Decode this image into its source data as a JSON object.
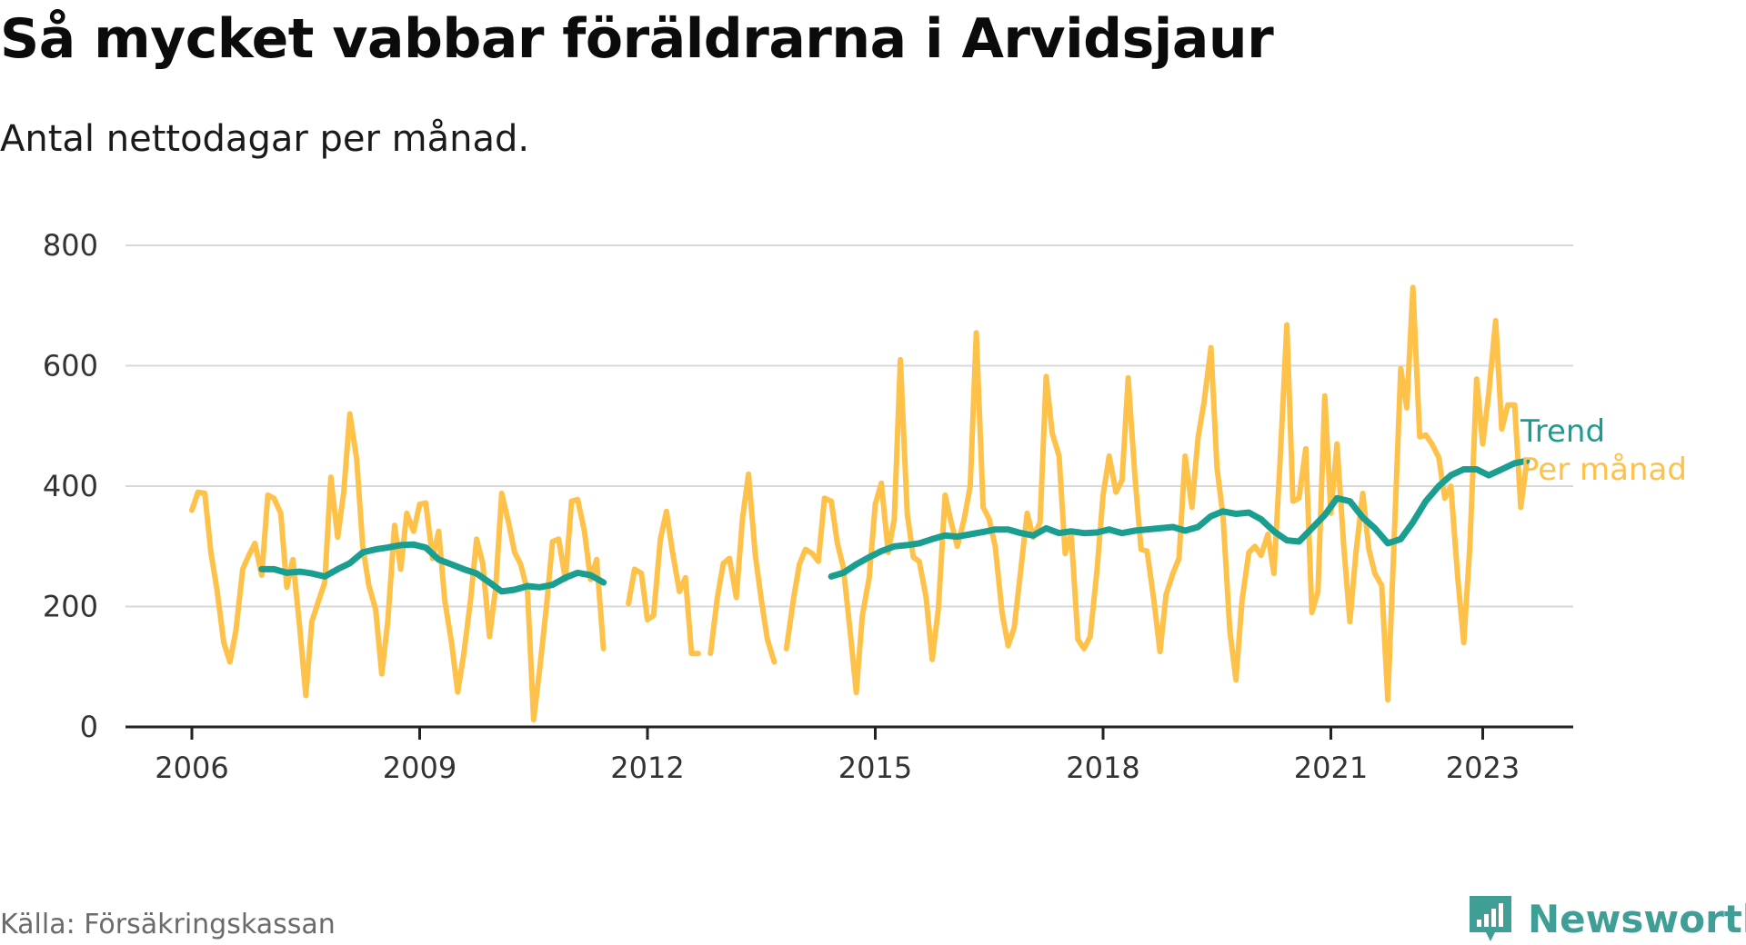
{
  "title": "Så mycket vabbar föräldrarna i Arvidsjaur",
  "subtitle": "Antal nettodagar per månad.",
  "source": "Källa: Försäkringskassan",
  "brand": "Newsworthy",
  "colors": {
    "monthly": "#FEC24A",
    "trend": "#1A9E8F",
    "grid": "#d8d8d8",
    "axis": "#222222",
    "brand": "#3F9E96"
  },
  "chart_data": {
    "type": "line",
    "title": "Så mycket vabbar föräldrarna i Arvidsjaur",
    "subtitle": "Antal nettodagar per månad.",
    "ylim": [
      0,
      800
    ],
    "yticks": [
      0,
      200,
      400,
      600,
      800
    ],
    "xlim": [
      2006,
      2024.2
    ],
    "xticks": [
      2006,
      2009,
      2012,
      2015,
      2018,
      2021,
      2023
    ],
    "grid": true,
    "legend": "end-of-line labels, right",
    "series": [
      {
        "name": "Per månad",
        "color": "#FEC24A",
        "points": [
          [
            2006.0,
            360
          ],
          [
            2006.08,
            390
          ],
          [
            2006.17,
            388
          ],
          [
            2006.25,
            290
          ],
          [
            2006.33,
            228
          ],
          [
            2006.42,
            140
          ],
          [
            2006.5,
            108
          ],
          [
            2006.58,
            160
          ],
          [
            2006.67,
            262
          ],
          [
            2006.75,
            285
          ],
          [
            2006.83,
            305
          ],
          [
            2006.92,
            252
          ],
          [
            2007.0,
            385
          ],
          [
            2007.08,
            380
          ],
          [
            2007.17,
            355
          ],
          [
            2007.25,
            232
          ],
          [
            2007.33,
            278
          ],
          [
            2007.42,
            165
          ],
          [
            2007.5,
            52
          ],
          [
            2007.58,
            175
          ],
          [
            2007.67,
            210
          ],
          [
            2007.75,
            240
          ],
          [
            2007.83,
            415
          ],
          [
            2007.92,
            315
          ],
          [
            2008.0,
            390
          ],
          [
            2008.08,
            520
          ],
          [
            2008.17,
            445
          ],
          [
            2008.25,
            300
          ],
          [
            2008.33,
            235
          ],
          [
            2008.42,
            195
          ],
          [
            2008.5,
            88
          ],
          [
            2008.58,
            175
          ],
          [
            2008.67,
            335
          ],
          [
            2008.75,
            262
          ],
          [
            2008.83,
            355
          ],
          [
            2008.92,
            325
          ],
          [
            2009.0,
            370
          ],
          [
            2009.08,
            372
          ],
          [
            2009.17,
            280
          ],
          [
            2009.25,
            325
          ],
          [
            2009.33,
            210
          ],
          [
            2009.42,
            140
          ],
          [
            2009.5,
            58
          ],
          [
            2009.58,
            120
          ],
          [
            2009.67,
            210
          ],
          [
            2009.75,
            312
          ],
          [
            2009.83,
            272
          ],
          [
            2009.92,
            150
          ],
          [
            2010.0,
            230
          ],
          [
            2010.08,
            388
          ],
          [
            2010.17,
            340
          ],
          [
            2010.25,
            290
          ],
          [
            2010.33,
            270
          ],
          [
            2010.42,
            225
          ],
          [
            2010.5,
            12
          ],
          [
            2010.58,
            95
          ],
          [
            2010.67,
            200
          ],
          [
            2010.75,
            308
          ],
          [
            2010.83,
            312
          ],
          [
            2010.92,
            245
          ],
          [
            2011.0,
            375
          ],
          [
            2011.08,
            378
          ],
          [
            2011.17,
            325
          ],
          [
            2011.25,
            245
          ],
          [
            2011.33,
            278
          ],
          [
            2011.42,
            130
          ],
          null,
          [
            2011.75,
            205
          ],
          [
            2011.83,
            262
          ],
          [
            2011.92,
            255
          ],
          [
            2012.0,
            178
          ],
          [
            2012.08,
            185
          ],
          [
            2012.17,
            312
          ],
          [
            2012.25,
            358
          ],
          [
            2012.33,
            290
          ],
          [
            2012.42,
            225
          ],
          [
            2012.5,
            248
          ],
          [
            2012.58,
            122
          ],
          [
            2012.67,
            122
          ],
          null,
          [
            2012.83,
            122
          ],
          [
            2012.92,
            215
          ],
          [
            2013.0,
            272
          ],
          [
            2013.08,
            280
          ],
          [
            2013.17,
            215
          ],
          [
            2013.25,
            345
          ],
          [
            2013.33,
            420
          ],
          [
            2013.42,
            285
          ],
          [
            2013.5,
            210
          ],
          [
            2013.58,
            145
          ],
          [
            2013.67,
            108
          ],
          null,
          [
            2013.83,
            130
          ],
          [
            2013.92,
            210
          ],
          [
            2014.0,
            270
          ],
          [
            2014.08,
            295
          ],
          [
            2014.17,
            288
          ],
          [
            2014.25,
            275
          ],
          [
            2014.33,
            380
          ],
          [
            2014.42,
            375
          ],
          [
            2014.5,
            305
          ],
          [
            2014.58,
            265
          ],
          [
            2014.67,
            158
          ],
          [
            2014.75,
            57
          ],
          [
            2014.83,
            185
          ],
          [
            2014.92,
            248
          ],
          [
            2015.0,
            370
          ],
          [
            2015.08,
            405
          ],
          [
            2015.17,
            290
          ],
          [
            2015.25,
            345
          ],
          [
            2015.33,
            610
          ],
          [
            2015.42,
            355
          ],
          [
            2015.5,
            282
          ],
          [
            2015.58,
            275
          ],
          [
            2015.67,
            215
          ],
          [
            2015.75,
            112
          ],
          [
            2015.83,
            195
          ],
          [
            2015.92,
            385
          ],
          [
            2016.0,
            340
          ],
          [
            2016.08,
            300
          ],
          [
            2016.17,
            345
          ],
          [
            2016.25,
            400
          ],
          [
            2016.33,
            655
          ],
          [
            2016.42,
            365
          ],
          [
            2016.5,
            345
          ],
          [
            2016.58,
            300
          ],
          [
            2016.67,
            190
          ],
          [
            2016.75,
            135
          ],
          [
            2016.83,
            165
          ],
          [
            2016.92,
            265
          ],
          [
            2017.0,
            355
          ],
          [
            2017.08,
            315
          ],
          [
            2017.17,
            340
          ],
          [
            2017.25,
            582
          ],
          [
            2017.33,
            488
          ],
          [
            2017.42,
            450
          ],
          [
            2017.5,
            288
          ],
          [
            2017.58,
            322
          ],
          [
            2017.67,
            145
          ],
          [
            2017.75,
            130
          ],
          [
            2017.83,
            150
          ],
          [
            2017.92,
            260
          ],
          [
            2018.0,
            385
          ],
          [
            2018.08,
            450
          ],
          [
            2018.17,
            390
          ],
          [
            2018.25,
            410
          ],
          [
            2018.33,
            580
          ],
          [
            2018.42,
            415
          ],
          [
            2018.5,
            295
          ],
          [
            2018.58,
            292
          ],
          [
            2018.67,
            210
          ],
          [
            2018.75,
            125
          ],
          [
            2018.83,
            220
          ],
          [
            2018.92,
            255
          ],
          [
            2019.0,
            280
          ],
          [
            2019.08,
            450
          ],
          [
            2019.17,
            365
          ],
          [
            2019.25,
            480
          ],
          [
            2019.33,
            540
          ],
          [
            2019.42,
            630
          ],
          [
            2019.5,
            430
          ],
          [
            2019.58,
            350
          ],
          [
            2019.67,
            160
          ],
          [
            2019.75,
            78
          ],
          [
            2019.83,
            210
          ],
          [
            2019.92,
            290
          ],
          [
            2020.0,
            300
          ],
          [
            2020.08,
            285
          ],
          [
            2020.17,
            320
          ],
          [
            2020.25,
            255
          ],
          [
            2020.33,
            440
          ],
          [
            2020.42,
            668
          ],
          [
            2020.5,
            375
          ],
          [
            2020.58,
            380
          ],
          [
            2020.67,
            462
          ],
          [
            2020.75,
            190
          ],
          [
            2020.83,
            225
          ],
          [
            2020.92,
            550
          ],
          [
            2021.0,
            355
          ],
          [
            2021.08,
            470
          ],
          [
            2021.17,
            300
          ],
          [
            2021.25,
            175
          ],
          [
            2021.33,
            290
          ],
          [
            2021.42,
            388
          ],
          [
            2021.5,
            295
          ],
          [
            2021.58,
            255
          ],
          [
            2021.67,
            235
          ],
          [
            2021.75,
            45
          ],
          [
            2021.83,
            300
          ],
          [
            2021.92,
            595
          ],
          [
            2022.0,
            530
          ],
          [
            2022.08,
            730
          ],
          [
            2022.17,
            482
          ],
          [
            2022.25,
            485
          ],
          [
            2022.33,
            470
          ],
          [
            2022.42,
            448
          ],
          [
            2022.5,
            380
          ],
          [
            2022.58,
            400
          ],
          [
            2022.67,
            250
          ],
          [
            2022.75,
            140
          ],
          [
            2022.83,
            300
          ],
          [
            2022.92,
            578
          ],
          [
            2023.0,
            470
          ],
          [
            2023.08,
            555
          ],
          [
            2023.17,
            675
          ],
          [
            2023.25,
            495
          ],
          [
            2023.33,
            535
          ],
          [
            2023.42,
            535
          ],
          [
            2023.5,
            365
          ],
          [
            2023.58,
            440
          ]
        ]
      },
      {
        "name": "Trend",
        "color": "#1A9E8F",
        "points": [
          [
            2006.92,
            262
          ],
          [
            2007.08,
            262
          ],
          [
            2007.25,
            256
          ],
          [
            2007.42,
            258
          ],
          [
            2007.58,
            255
          ],
          [
            2007.75,
            250
          ],
          [
            2007.92,
            262
          ],
          [
            2008.08,
            272
          ],
          [
            2008.25,
            290
          ],
          [
            2008.42,
            295
          ],
          [
            2008.58,
            298
          ],
          [
            2008.75,
            302
          ],
          [
            2008.92,
            303
          ],
          [
            2009.08,
            298
          ],
          [
            2009.25,
            278
          ],
          [
            2009.42,
            270
          ],
          [
            2009.58,
            262
          ],
          [
            2009.75,
            255
          ],
          [
            2009.92,
            240
          ],
          [
            2010.08,
            225
          ],
          [
            2010.25,
            228
          ],
          [
            2010.42,
            234
          ],
          [
            2010.58,
            232
          ],
          [
            2010.75,
            236
          ],
          [
            2010.92,
            248
          ],
          [
            2011.08,
            256
          ],
          [
            2011.25,
            252
          ],
          [
            2011.42,
            240
          ],
          null,
          [
            2014.42,
            250
          ],
          [
            2014.58,
            256
          ],
          [
            2014.75,
            270
          ],
          [
            2014.92,
            282
          ],
          [
            2015.08,
            292
          ],
          [
            2015.25,
            300
          ],
          [
            2015.42,
            302
          ],
          [
            2015.58,
            305
          ],
          [
            2015.75,
            312
          ],
          [
            2015.92,
            318
          ],
          [
            2016.08,
            316
          ],
          [
            2016.25,
            320
          ],
          [
            2016.42,
            324
          ],
          [
            2016.58,
            328
          ],
          [
            2016.75,
            328
          ],
          [
            2016.92,
            322
          ],
          [
            2017.08,
            318
          ],
          [
            2017.25,
            330
          ],
          [
            2017.42,
            322
          ],
          [
            2017.58,
            325
          ],
          [
            2017.75,
            322
          ],
          [
            2017.92,
            323
          ],
          [
            2018.08,
            328
          ],
          [
            2018.25,
            322
          ],
          [
            2018.42,
            326
          ],
          [
            2018.58,
            328
          ],
          [
            2018.75,
            330
          ],
          [
            2018.92,
            332
          ],
          [
            2019.08,
            326
          ],
          [
            2019.25,
            332
          ],
          [
            2019.42,
            350
          ],
          [
            2019.58,
            358
          ],
          [
            2019.75,
            354
          ],
          [
            2019.92,
            356
          ],
          [
            2020.08,
            345
          ],
          [
            2020.25,
            325
          ],
          [
            2020.42,
            310
          ],
          [
            2020.58,
            308
          ],
          [
            2020.75,
            330
          ],
          [
            2020.92,
            352
          ],
          [
            2021.08,
            380
          ],
          [
            2021.25,
            375
          ],
          [
            2021.42,
            348
          ],
          [
            2021.58,
            330
          ],
          [
            2021.75,
            305
          ],
          [
            2021.92,
            312
          ],
          [
            2022.08,
            340
          ],
          [
            2022.25,
            375
          ],
          [
            2022.42,
            400
          ],
          [
            2022.58,
            418
          ],
          [
            2022.75,
            428
          ],
          [
            2022.92,
            428
          ],
          [
            2023.08,
            418
          ],
          [
            2023.25,
            428
          ],
          [
            2023.42,
            438
          ],
          [
            2023.58,
            442
          ]
        ]
      }
    ]
  }
}
